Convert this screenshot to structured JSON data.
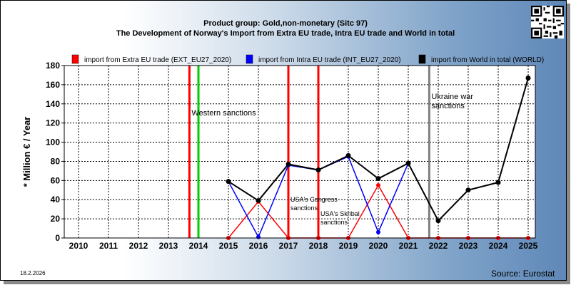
{
  "header": {
    "title_line1": "Product group: Gold,non-monetary (Sitc 97)",
    "title_line2": "The Development of Norway's Import from Extra EU trade, Intra EU trade and World in total"
  },
  "footer": {
    "date": "18.2.2026",
    "source": "Source: Eurostat"
  },
  "chart_data": {
    "type": "line",
    "categories": [
      "2010",
      "2011",
      "2012",
      "2013",
      "2014",
      "2015",
      "2016",
      "2017",
      "2018",
      "2019",
      "2020",
      "2021",
      "2022",
      "2023",
      "2024",
      "2025"
    ],
    "ylabel": "* Million € / Year",
    "ylim": [
      0,
      180
    ],
    "yticks": [
      0,
      20,
      40,
      60,
      80,
      100,
      120,
      140,
      160,
      180
    ],
    "grid": true,
    "legend_position": "top",
    "series": [
      {
        "name": "import from Extra EU trade (EXT_EU27_2020)",
        "color": "#ff0000",
        "values": [
          null,
          null,
          null,
          null,
          null,
          0,
          38,
          0,
          0,
          0,
          55,
          0,
          0,
          0,
          0,
          0
        ]
      },
      {
        "name": "import from Intra EU trade (INT_EU27_2020)",
        "color": "#0000ff",
        "values": [
          null,
          null,
          null,
          null,
          null,
          59,
          1,
          76,
          71,
          85,
          6,
          78,
          null,
          null,
          null,
          null
        ]
      },
      {
        "name": "import from World in total (WORLD)",
        "color": "#000000",
        "values": [
          null,
          null,
          null,
          null,
          null,
          59,
          39,
          77,
          71,
          86,
          62,
          78,
          18,
          50,
          58,
          167
        ]
      }
    ],
    "annotations": [
      {
        "label": "Western sanctions",
        "x": 2013.7,
        "color": "#ff0000",
        "text_y": 128
      },
      {
        "label": "",
        "x": 2014.0,
        "color": "#00cc00",
        "text_y": null
      },
      {
        "label": "USA's Congress sanctions",
        "x": 2017.0,
        "color": "#ff0000",
        "text_y": 38
      },
      {
        "label": "USA's Skribal sanctions",
        "x": 2018.0,
        "color": "#ff0000",
        "text_y": 23
      },
      {
        "label": "Ukraine war sanctions",
        "x": 2021.7,
        "color": "#808080",
        "text_y": 145
      }
    ]
  }
}
